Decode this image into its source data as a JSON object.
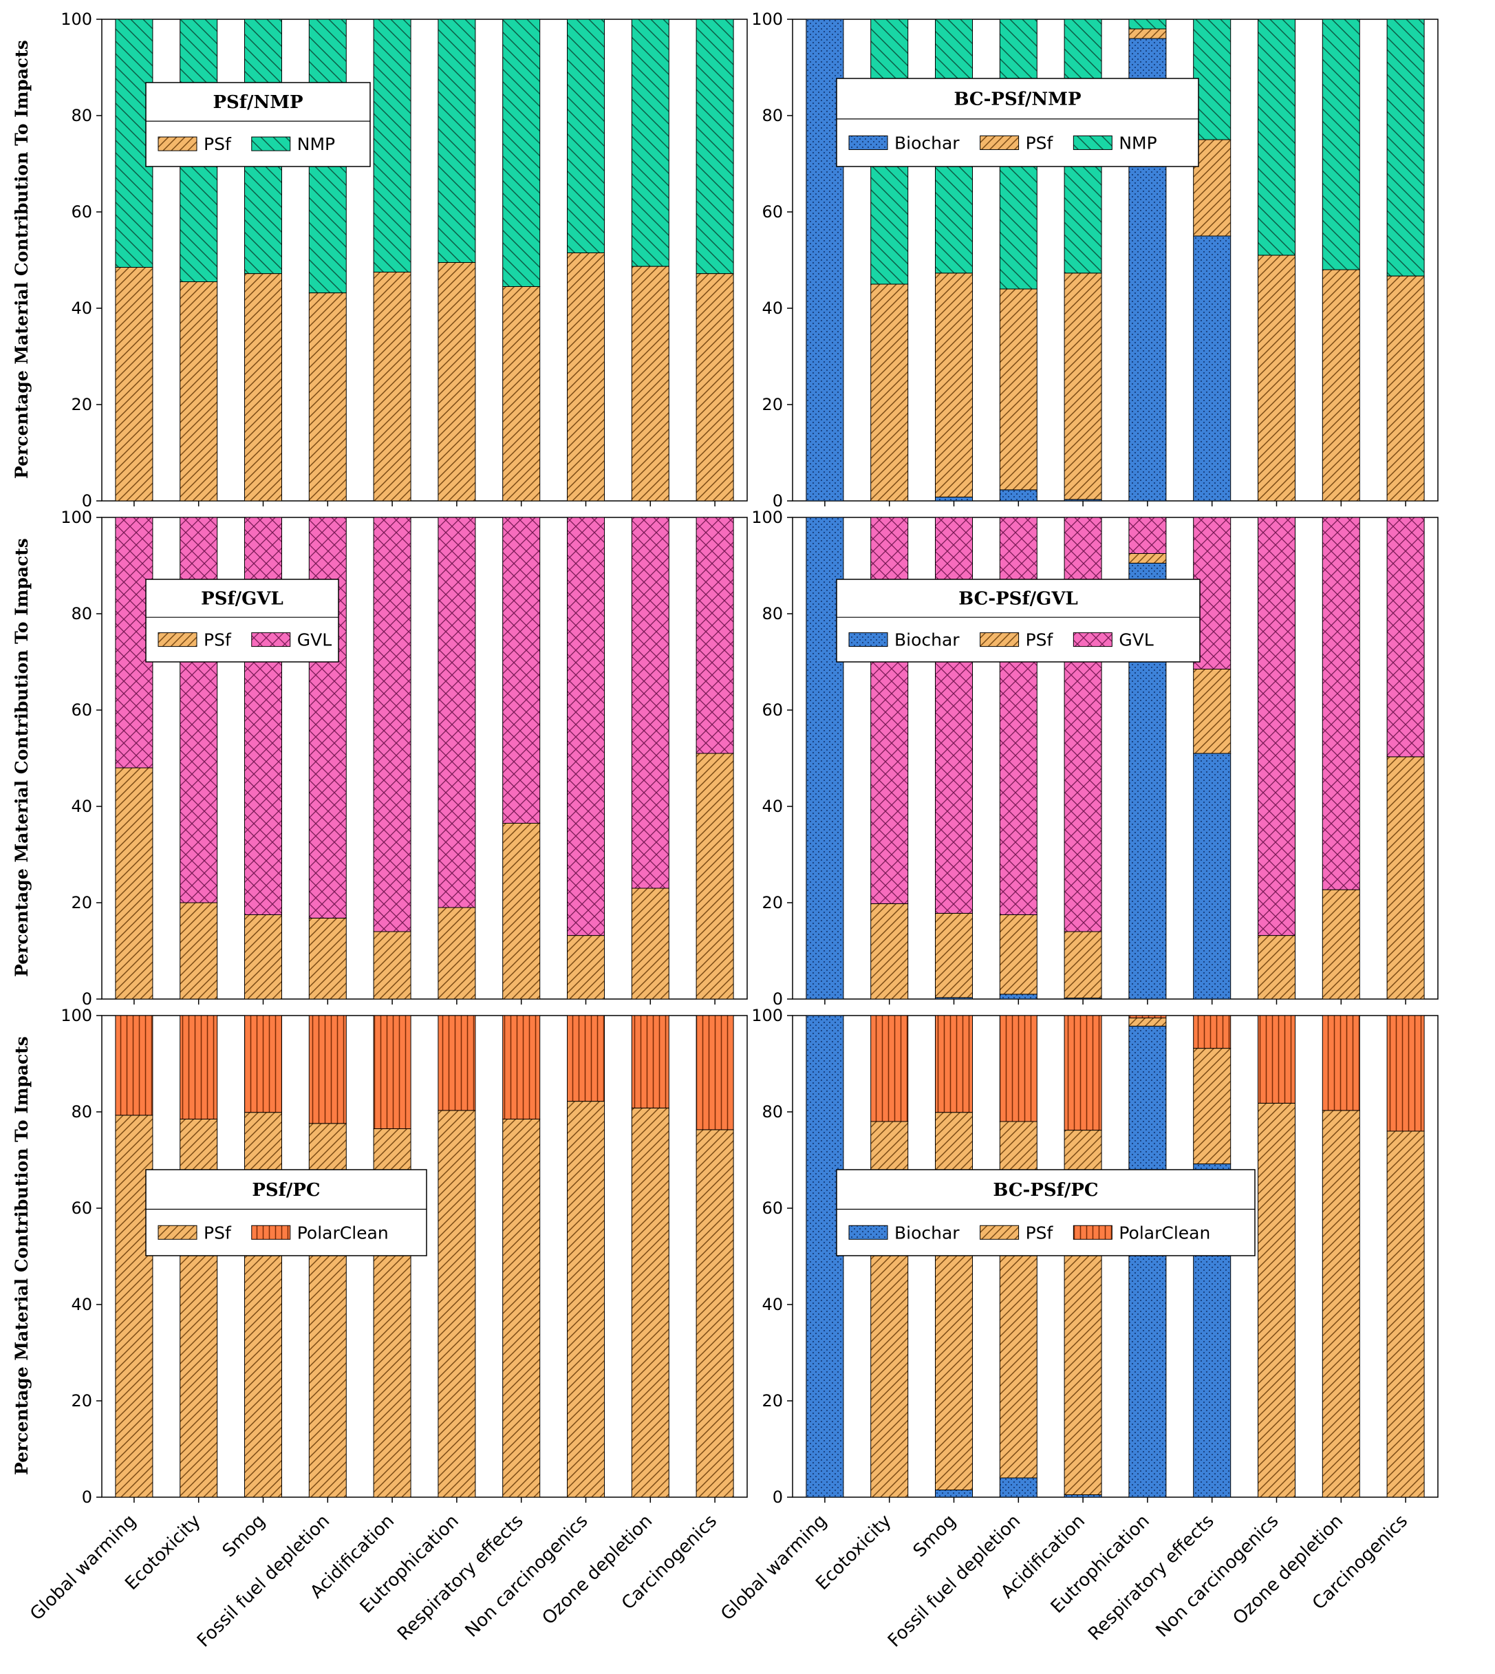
{
  "colors": {
    "biochar": "#3d82d9",
    "psf": "#f4b76a",
    "nmp": "#19d6a5",
    "gvl": "#f76cbd",
    "polarclean": "#fc7d44"
  },
  "y_axis_label": "Percentage Material Contribution To Impacts",
  "y_ticks": [
    "0",
    "20",
    "40",
    "60",
    "80",
    "100"
  ],
  "categories": [
    "Global warming",
    "Ecotoxicity",
    "Smog",
    "Fossil fuel depletion",
    "Acidification",
    "Eutrophication",
    "Respiratory effects",
    "Non carcinogenics",
    "Ozone depletion",
    "Carcinogenics"
  ],
  "chart_data": [
    {
      "type": "bar",
      "stacked": true,
      "title": "PSf/NMP",
      "ylabel": "Percentage Material Contribution To Impacts",
      "ylim": [
        0,
        100
      ],
      "categories": [
        "Global warming",
        "Ecotoxicity",
        "Smog",
        "Fossil fuel depletion",
        "Acidification",
        "Eutrophication",
        "Respiratory effects",
        "Non carcinogenics",
        "Ozone depletion",
        "Carcinogenics"
      ],
      "series": [
        {
          "name": "PSf",
          "key": "psf",
          "values": [
            48.5,
            45.5,
            47.2,
            43.2,
            47.5,
            49.5,
            44.5,
            51.5,
            48.7,
            47.2
          ]
        },
        {
          "name": "NMP",
          "key": "nmp",
          "values": [
            51.5,
            54.5,
            52.8,
            56.8,
            52.5,
            50.5,
            55.5,
            48.5,
            51.3,
            52.8
          ]
        }
      ]
    },
    {
      "type": "bar",
      "stacked": true,
      "title": "BC-PSf/NMP",
      "ylabel": "Percentage Material Contribution To Impacts",
      "ylim": [
        0,
        100
      ],
      "categories": [
        "Global warming",
        "Ecotoxicity",
        "Smog",
        "Fossil fuel depletion",
        "Acidification",
        "Eutrophication",
        "Respiratory effects",
        "Non carcinogenics",
        "Ozone depletion",
        "Carcinogenics"
      ],
      "series": [
        {
          "name": "Biochar",
          "key": "biochar",
          "values": [
            100,
            0,
            0.8,
            2.3,
            0.3,
            96,
            55,
            0,
            0,
            0
          ]
        },
        {
          "name": "PSf",
          "key": "psf",
          "values": [
            0,
            45,
            46.5,
            41.7,
            47,
            2,
            20,
            51,
            48,
            46.7
          ]
        },
        {
          "name": "NMP",
          "key": "nmp",
          "values": [
            0,
            55,
            52.7,
            56,
            52.7,
            2,
            25,
            49,
            52,
            53.3
          ]
        }
      ]
    },
    {
      "type": "bar",
      "stacked": true,
      "title": "PSf/GVL",
      "ylabel": "Percentage Material Contribution To Impacts",
      "ylim": [
        0,
        100
      ],
      "categories": [
        "Global warming",
        "Ecotoxicity",
        "Smog",
        "Fossil fuel depletion",
        "Acidification",
        "Eutrophication",
        "Respiratory effects",
        "Non carcinogenics",
        "Ozone depletion",
        "Carcinogenics"
      ],
      "series": [
        {
          "name": "PSf",
          "key": "psf",
          "values": [
            48,
            20,
            17.5,
            16.8,
            14,
            19,
            36.5,
            13.2,
            23,
            51
          ]
        },
        {
          "name": "GVL",
          "key": "gvl",
          "values": [
            52,
            80,
            82.5,
            83.2,
            86,
            81,
            63.5,
            86.8,
            77,
            49
          ]
        }
      ]
    },
    {
      "type": "bar",
      "stacked": true,
      "title": "BC-PSf/GVL",
      "ylabel": "Percentage Material Contribution To Impacts",
      "ylim": [
        0,
        100
      ],
      "categories": [
        "Global warming",
        "Ecotoxicity",
        "Smog",
        "Fossil fuel depletion",
        "Acidification",
        "Eutrophication",
        "Respiratory effects",
        "Non carcinogenics",
        "Ozone depletion",
        "Carcinogenics"
      ],
      "series": [
        {
          "name": "Biochar",
          "key": "biochar",
          "values": [
            100,
            0,
            0.3,
            1,
            0.2,
            90.5,
            51,
            0,
            0,
            0
          ]
        },
        {
          "name": "PSf",
          "key": "psf",
          "values": [
            0,
            19.8,
            17.5,
            16.5,
            13.8,
            2,
            17.5,
            13.2,
            22.7,
            50.3
          ]
        },
        {
          "name": "GVL",
          "key": "gvl",
          "values": [
            0,
            80.2,
            82.2,
            82.5,
            86,
            7.5,
            31.5,
            86.8,
            77.3,
            49.7
          ]
        }
      ]
    },
    {
      "type": "bar",
      "stacked": true,
      "title": "PSf/PC",
      "ylabel": "Percentage Material Contribution To Impacts",
      "ylim": [
        0,
        100
      ],
      "categories": [
        "Global warming",
        "Ecotoxicity",
        "Smog",
        "Fossil fuel depletion",
        "Acidification",
        "Eutrophication",
        "Respiratory effects",
        "Non carcinogenics",
        "Ozone depletion",
        "Carcinogenics"
      ],
      "series": [
        {
          "name": "PSf",
          "key": "psf",
          "values": [
            79.3,
            78.5,
            79.9,
            77.6,
            76.5,
            80.3,
            78.5,
            82.2,
            80.8,
            76.3
          ]
        },
        {
          "name": "PolarClean",
          "key": "polarclean",
          "values": [
            20.7,
            21.5,
            20.1,
            22.4,
            23.5,
            19.7,
            21.5,
            17.8,
            19.2,
            23.7
          ]
        }
      ]
    },
    {
      "type": "bar",
      "stacked": true,
      "title": "BC-PSf/PC",
      "ylabel": "Percentage Material Contribution To Impacts",
      "ylim": [
        0,
        100
      ],
      "categories": [
        "Global warming",
        "Ecotoxicity",
        "Smog",
        "Fossil fuel depletion",
        "Acidification",
        "Eutrophication",
        "Respiratory effects",
        "Non carcinogenics",
        "Ozone depletion",
        "Carcinogenics"
      ],
      "series": [
        {
          "name": "Biochar",
          "key": "biochar",
          "values": [
            100,
            0,
            1.5,
            4,
            0.5,
            97.8,
            69.2,
            0,
            0,
            0
          ]
        },
        {
          "name": "PSf",
          "key": "psf",
          "values": [
            0,
            78,
            78.4,
            74,
            75.7,
            1.7,
            24,
            81.8,
            80.3,
            76
          ]
        },
        {
          "name": "PolarClean",
          "key": "polarclean",
          "values": [
            0,
            22,
            20.1,
            22,
            23.8,
            0.5,
            6.8,
            18.2,
            19.7,
            24
          ]
        }
      ]
    }
  ]
}
